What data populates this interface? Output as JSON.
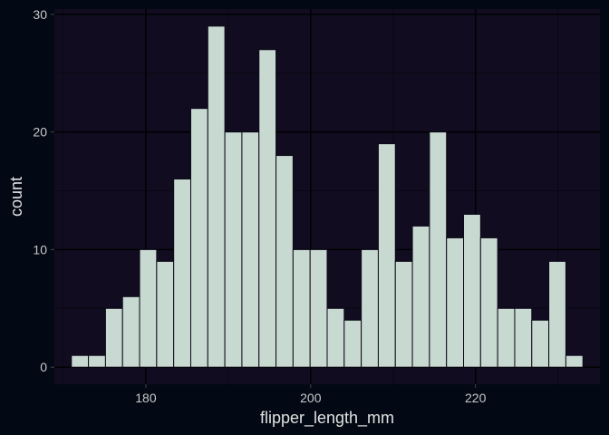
{
  "chart_data": {
    "type": "bar",
    "xlabel": "flipper_length_mm",
    "ylabel": "count",
    "bin_width": 2.069,
    "x_bins_start": [
      172,
      174.069,
      176.138,
      178.207,
      180.276,
      182.345,
      184.414,
      186.483,
      188.552,
      190.621,
      192.69,
      194.759,
      196.828,
      198.897,
      200.966,
      203.034,
      205.103,
      207.172,
      209.241,
      211.31,
      213.379,
      215.448,
      217.517,
      219.586,
      221.655,
      223.724,
      225.793,
      227.862,
      229.931,
      232
    ],
    "values": [
      1,
      1,
      5,
      6,
      10,
      9,
      16,
      22,
      29,
      20,
      20,
      27,
      18,
      10,
      10,
      5,
      4,
      10,
      19,
      9,
      12,
      20,
      11,
      13,
      11,
      5,
      5,
      4,
      9,
      1
    ],
    "xlim": [
      168.9,
      235.1
    ],
    "ylim": [
      -1.45,
      30.45
    ],
    "x_ticks": [
      180,
      200,
      220
    ],
    "y_ticks": [
      0,
      10,
      20,
      30
    ],
    "grid": true,
    "colors": {
      "background": "#020914",
      "panel": "#110c20",
      "grid_major": "#000000",
      "grid_minor": "#0a0813",
      "bar_fill": "#c8d9d2",
      "bar_stroke": "#0d0a17"
    }
  }
}
